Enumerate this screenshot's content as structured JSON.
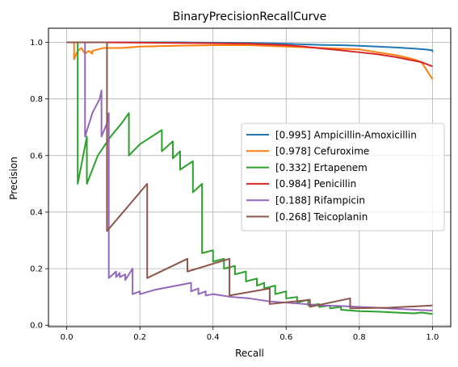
{
  "chart_data": {
    "type": "line",
    "title": "BinaryPrecisionRecallCurve",
    "xlabel": "Recall",
    "ylabel": "Precision",
    "xlim": [
      -0.05,
      1.05
    ],
    "ylim": [
      -0.005,
      1.05
    ],
    "xticks": [
      "0.0",
      "0.2",
      "0.4",
      "0.6",
      "0.8",
      "1.0"
    ],
    "yticks": [
      "0.0",
      "0.2",
      "0.4",
      "0.6",
      "0.8",
      "1.0"
    ],
    "grid": true,
    "legend_position": "center-right",
    "series": [
      {
        "name": "[0.995] Ampicillin-Amoxicillin",
        "color": "#1f77b4",
        "x": [
          0,
          0.05,
          0.1,
          0.2,
          0.3,
          0.4,
          0.5,
          0.6,
          0.65,
          0.7,
          0.75,
          0.8,
          0.85,
          0.9,
          0.95,
          0.98,
          1.0,
          1.0
        ],
        "y": [
          1.0,
          1.0,
          1.0,
          1.0,
          1.0,
          0.999,
          0.998,
          0.995,
          0.993,
          0.991,
          0.99,
          0.988,
          0.985,
          0.982,
          0.978,
          0.975,
          0.972,
          0.966
        ]
      },
      {
        "name": "[0.978] Cefuroxime",
        "color": "#ff7f0e",
        "x": [
          0,
          0.02,
          0.02,
          0.03,
          0.04,
          0.05,
          0.06,
          0.07,
          0.07,
          0.1,
          0.15,
          0.2,
          0.3,
          0.4,
          0.5,
          0.6,
          0.7,
          0.8,
          0.85,
          0.9,
          0.95,
          0.97,
          0.98,
          0.99,
          1.0
        ],
        "y": [
          1.0,
          1.0,
          0.94,
          0.97,
          0.98,
          0.96,
          0.97,
          0.96,
          0.97,
          0.98,
          0.98,
          0.985,
          0.988,
          0.99,
          0.99,
          0.985,
          0.98,
          0.975,
          0.965,
          0.955,
          0.94,
          0.93,
          0.91,
          0.89,
          0.87
        ]
      },
      {
        "name": "[0.332] Ertapenem",
        "color": "#2ca02c",
        "x": [
          0,
          0.03,
          0.03,
          0.055,
          0.055,
          0.085,
          0.12,
          0.15,
          0.17,
          0.17,
          0.2,
          0.26,
          0.26,
          0.29,
          0.29,
          0.31,
          0.31,
          0.345,
          0.345,
          0.37,
          0.37,
          0.4,
          0.4,
          0.43,
          0.43,
          0.46,
          0.46,
          0.49,
          0.49,
          0.52,
          0.52,
          0.54,
          0.54,
          0.57,
          0.57,
          0.6,
          0.6,
          0.63,
          0.63,
          0.66,
          0.66,
          0.69,
          0.69,
          0.72,
          0.72,
          0.75,
          0.75,
          0.8,
          0.85,
          0.9,
          0.95,
          0.97,
          1.0
        ],
        "y": [
          1.0,
          1.0,
          0.5,
          0.667,
          0.5,
          0.6,
          0.667,
          0.714,
          0.75,
          0.6,
          0.64,
          0.69,
          0.615,
          0.65,
          0.59,
          0.615,
          0.55,
          0.58,
          0.47,
          0.5,
          0.255,
          0.265,
          0.225,
          0.235,
          0.2,
          0.21,
          0.18,
          0.19,
          0.155,
          0.165,
          0.14,
          0.15,
          0.13,
          0.14,
          0.11,
          0.12,
          0.095,
          0.1,
          0.08,
          0.09,
          0.07,
          0.075,
          0.065,
          0.07,
          0.06,
          0.065,
          0.055,
          0.05,
          0.048,
          0.045,
          0.042,
          0.045,
          0.04
        ]
      },
      {
        "name": "[0.984] Penicillin",
        "color": "#d62728",
        "x": [
          0,
          0.1,
          0.2,
          0.3,
          0.4,
          0.5,
          0.6,
          0.65,
          0.7,
          0.75,
          0.8,
          0.85,
          0.88,
          0.9,
          0.93,
          0.95,
          0.97,
          0.98,
          0.99,
          1.0
        ],
        "y": [
          1.0,
          1.0,
          0.999,
          0.998,
          0.997,
          0.995,
          0.99,
          0.985,
          0.978,
          0.972,
          0.965,
          0.958,
          0.952,
          0.948,
          0.94,
          0.935,
          0.93,
          0.925,
          0.92,
          0.915
        ]
      },
      {
        "name": "[0.188] Rifampicin",
        "color": "#9467bd",
        "x": [
          0,
          0.05,
          0.05,
          0.07,
          0.09,
          0.095,
          0.095,
          0.11,
          0.115,
          0.115,
          0.135,
          0.135,
          0.145,
          0.145,
          0.16,
          0.16,
          0.18,
          0.18,
          0.2,
          0.2,
          0.24,
          0.28,
          0.32,
          0.34,
          0.34,
          0.36,
          0.36,
          0.38,
          0.38,
          0.4,
          0.45,
          0.5,
          0.55,
          0.6,
          0.65,
          0.7,
          0.75,
          0.8,
          0.85,
          0.9,
          0.95,
          1.0
        ],
        "y": [
          1.0,
          1.0,
          0.667,
          0.75,
          0.8,
          0.83,
          0.667,
          0.714,
          0.75,
          0.167,
          0.19,
          0.17,
          0.185,
          0.17,
          0.18,
          0.16,
          0.2,
          0.11,
          0.12,
          0.11,
          0.125,
          0.135,
          0.145,
          0.15,
          0.12,
          0.13,
          0.11,
          0.12,
          0.105,
          0.11,
          0.1,
          0.095,
          0.085,
          0.08,
          0.075,
          0.07,
          0.068,
          0.065,
          0.062,
          0.058,
          0.055,
          0.052
        ]
      },
      {
        "name": "[0.268] Teicoplanin",
        "color": "#8c564b",
        "x": [
          0,
          0.11,
          0.11,
          0.22,
          0.22,
          0.33,
          0.33,
          0.445,
          0.445,
          0.555,
          0.555,
          0.665,
          0.665,
          0.775,
          0.775,
          0.88,
          1.0
        ],
        "y": [
          1.0,
          1.0,
          0.333,
          0.5,
          0.167,
          0.235,
          0.19,
          0.235,
          0.105,
          0.13,
          0.075,
          0.09,
          0.065,
          0.095,
          0.06,
          0.062,
          0.07
        ]
      }
    ]
  }
}
